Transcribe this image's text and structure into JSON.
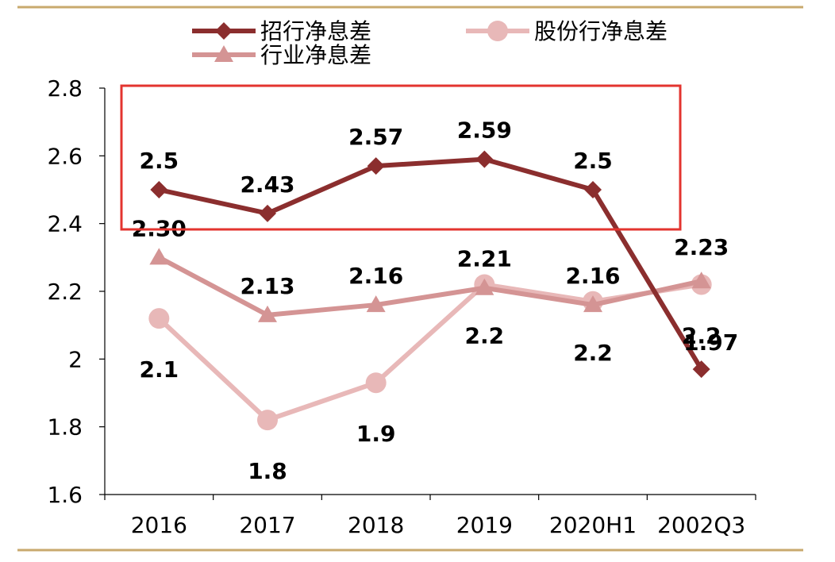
{
  "chart_data": {
    "type": "line",
    "categories": [
      "2016",
      "2017",
      "2018",
      "2019",
      "2020H1",
      "2002Q3"
    ],
    "ylim": [
      1.6,
      2.8
    ],
    "yticks": [
      "1.6",
      "1.8",
      "2",
      "2.2",
      "2.4",
      "2.6",
      "2.8"
    ],
    "grid": false,
    "legend_position": "top",
    "series": [
      {
        "name": "招行净息差",
        "values": [
          2.5,
          2.43,
          2.57,
          2.59,
          2.5,
          1.97
        ],
        "labels": [
          "2.5",
          "2.43",
          "2.57",
          "2.59",
          "2.5",
          "1.97"
        ],
        "color": "#8b2e2e",
        "marker": "diamond"
      },
      {
        "name": "股份行净息差",
        "values": [
          2.12,
          1.82,
          1.93,
          2.22,
          2.17,
          2.22
        ],
        "labels": [
          "2.1",
          "1.8",
          "1.9",
          "2.2",
          "2.2",
          "2.2"
        ],
        "color": "#e8b8b8",
        "marker": "circle"
      },
      {
        "name": "行业净息差",
        "values": [
          2.3,
          2.13,
          2.16,
          2.21,
          2.16,
          2.23
        ],
        "labels": [
          "2.30",
          "2.13",
          "2.16",
          "2.21",
          "2.16",
          "2.23"
        ],
        "color": "#d49494",
        "marker": "triangle"
      }
    ],
    "highlight_box_color": "#e3342f",
    "rule_color": "#c8a96e"
  }
}
